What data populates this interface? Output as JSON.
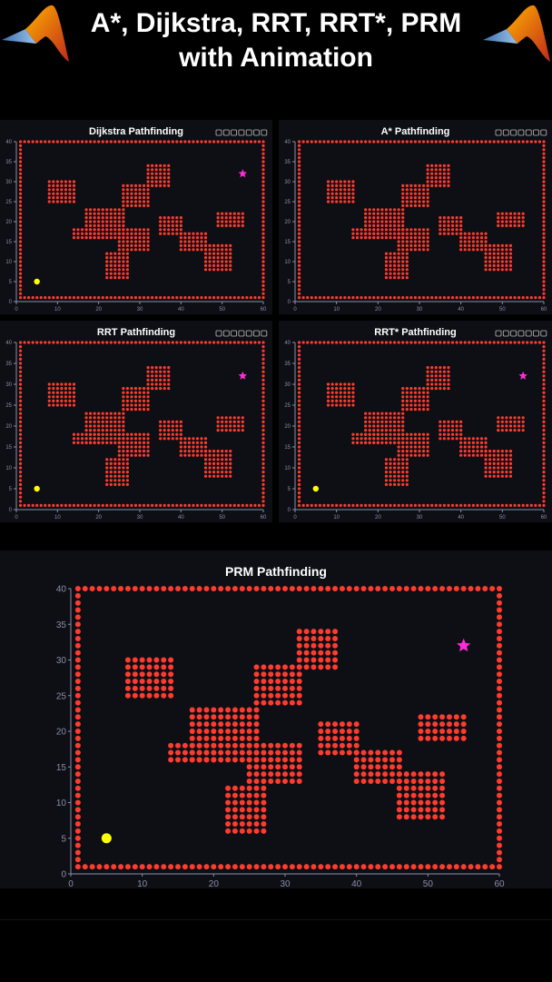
{
  "header": {
    "line1": "A*, Dijkstra, RRT, RRT*, PRM",
    "line2": "with Animation"
  },
  "icons": {
    "logo_left": "matlab-logo-icon",
    "logo_right": "matlab-logo-icon",
    "toolbar": [
      "edit-icon",
      "export-icon",
      "save-icon",
      "pan-icon",
      "zoom-in-icon",
      "zoom-out-icon",
      "home-icon"
    ]
  },
  "colors": {
    "background": "#000000",
    "panel": "#0d0f14",
    "obstacle": "#ff3b2f",
    "start": "#ffff00",
    "goal": "#ff2bd6",
    "axis": "#8a8fa8",
    "title": "#ffffff"
  },
  "chart_data": [
    {
      "type": "scatter",
      "title": "Dijkstra Pathfinding",
      "xlim": [
        0,
        60
      ],
      "ylim": [
        0,
        40
      ],
      "xticks": [
        0,
        10,
        20,
        30,
        40,
        50,
        60
      ],
      "yticks": [
        0,
        5,
        10,
        15,
        20,
        25,
        30,
        35,
        40
      ],
      "start": [
        5,
        5
      ],
      "goal": [
        55,
        32
      ],
      "show_toolbar": true
    },
    {
      "type": "scatter",
      "title": "A* Pathfinding",
      "xlim": [
        0,
        60
      ],
      "ylim": [
        0,
        40
      ],
      "xticks": [
        0,
        10,
        20,
        30,
        40,
        50,
        60
      ],
      "yticks": [
        0,
        5,
        10,
        15,
        20,
        25,
        30,
        35,
        40
      ],
      "start": null,
      "goal": null,
      "show_toolbar": true
    },
    {
      "type": "scatter",
      "title": "RRT Pathfinding",
      "xlim": [
        0,
        60
      ],
      "ylim": [
        0,
        40
      ],
      "xticks": [
        0,
        10,
        20,
        30,
        40,
        50,
        60
      ],
      "yticks": [
        0,
        5,
        10,
        15,
        20,
        25,
        30,
        35,
        40
      ],
      "start": [
        5,
        5
      ],
      "goal": [
        55,
        32
      ],
      "show_toolbar": true
    },
    {
      "type": "scatter",
      "title": "RRT* Pathfinding",
      "xlim": [
        0,
        60
      ],
      "ylim": [
        0,
        40
      ],
      "xticks": [
        0,
        10,
        20,
        30,
        40,
        50,
        60
      ],
      "yticks": [
        0,
        5,
        10,
        15,
        20,
        25,
        30,
        35,
        40
      ],
      "start": [
        5,
        5
      ],
      "goal": [
        55,
        32
      ],
      "show_toolbar": true
    },
    {
      "type": "scatter",
      "title": "PRM Pathfinding",
      "xlim": [
        0,
        60
      ],
      "ylim": [
        0,
        40
      ],
      "xticks": [
        0,
        10,
        20,
        30,
        40,
        50,
        60
      ],
      "yticks": [
        0,
        5,
        10,
        15,
        20,
        25,
        30,
        35,
        40
      ],
      "start": [
        5,
        5
      ],
      "goal": [
        55,
        32
      ],
      "show_toolbar": false
    }
  ],
  "obstacles": {
    "border": {
      "x": [
        1,
        60
      ],
      "y": [
        1,
        40
      ]
    },
    "blocks": [
      {
        "x": [
          8,
          14
        ],
        "y": [
          25,
          30
        ]
      },
      {
        "x": [
          14,
          20
        ],
        "y": [
          16,
          18
        ]
      },
      {
        "x": [
          17,
          26
        ],
        "y": [
          16,
          23
        ]
      },
      {
        "x": [
          22,
          27
        ],
        "y": [
          6,
          12
        ]
      },
      {
        "x": [
          25,
          32
        ],
        "y": [
          13,
          18
        ]
      },
      {
        "x": [
          26,
          32
        ],
        "y": [
          24,
          29
        ]
      },
      {
        "x": [
          32,
          37
        ],
        "y": [
          29,
          34
        ]
      },
      {
        "x": [
          35,
          40
        ],
        "y": [
          17,
          21
        ]
      },
      {
        "x": [
          40,
          46
        ],
        "y": [
          13,
          17
        ]
      },
      {
        "x": [
          46,
          52
        ],
        "y": [
          8,
          14
        ]
      },
      {
        "x": [
          49,
          55
        ],
        "y": [
          19,
          22
        ]
      }
    ]
  }
}
